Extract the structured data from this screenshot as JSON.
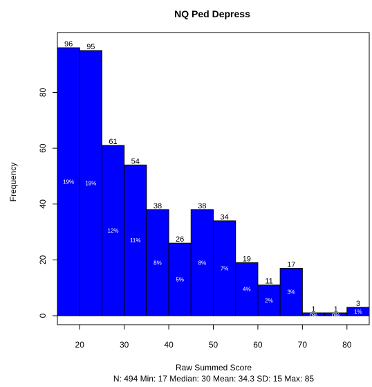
{
  "chart_data": {
    "type": "bar",
    "title": "NQ Ped Depress",
    "xlabel": "Raw Summed Score",
    "ylabel": "Frequency",
    "stats_line": "N: 494 Min: 17  Median: 30  Mean: 34.3  SD: 15  Max: 85",
    "bins": [
      {
        "x0": 15,
        "x1": 20,
        "count": 96,
        "count_label": "96",
        "pct_label": "19%"
      },
      {
        "x0": 20,
        "x1": 25,
        "count": 95,
        "count_label": "95",
        "pct_label": "19%"
      },
      {
        "x0": 25,
        "x1": 30,
        "count": 61,
        "count_label": "61",
        "pct_label": "12%"
      },
      {
        "x0": 30,
        "x1": 35,
        "count": 54,
        "count_label": "54",
        "pct_label": "11%"
      },
      {
        "x0": 35,
        "x1": 40,
        "count": 38,
        "count_label": "38",
        "pct_label": "8%"
      },
      {
        "x0": 40,
        "x1": 45,
        "count": 26,
        "count_label": "26",
        "pct_label": "5%"
      },
      {
        "x0": 45,
        "x1": 50,
        "count": 38,
        "count_label": "38",
        "pct_label": "8%"
      },
      {
        "x0": 50,
        "x1": 55,
        "count": 34,
        "count_label": "34",
        "pct_label": "7%"
      },
      {
        "x0": 55,
        "x1": 60,
        "count": 19,
        "count_label": "19",
        "pct_label": "4%"
      },
      {
        "x0": 60,
        "x1": 65,
        "count": 11,
        "count_label": "11",
        "pct_label": "2%"
      },
      {
        "x0": 65,
        "x1": 70,
        "count": 17,
        "count_label": "17",
        "pct_label": "3%"
      },
      {
        "x0": 70,
        "x1": 75,
        "count": 1,
        "count_label": "1",
        "pct_label": "0%"
      },
      {
        "x0": 75,
        "x1": 80,
        "count": 1,
        "count_label": "1",
        "pct_label": "0%"
      },
      {
        "x0": 80,
        "x1": 85,
        "count": 3,
        "count_label": "3",
        "pct_label": "1%"
      }
    ],
    "x_ticks": [
      20,
      30,
      40,
      50,
      60,
      70,
      80
    ],
    "y_ticks": [
      0,
      20,
      40,
      60,
      80
    ],
    "xlim": [
      15,
      85
    ],
    "ylim": [
      0,
      96
    ],
    "bar_color": "#0000FF",
    "bar_edge_color": "#000000",
    "pct_label_color": "#FFFFFF",
    "grid": false,
    "legend": "none"
  }
}
